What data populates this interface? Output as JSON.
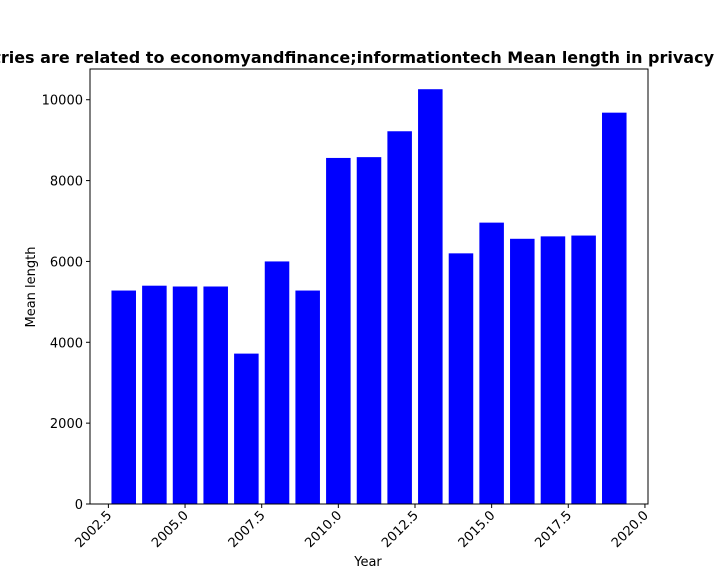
{
  "chart_data": {
    "type": "bar",
    "title": "Countries are related to economyandfinance;informationtech Mean length in privacy policies",
    "xlabel": "Year",
    "ylabel": "Mean length",
    "x": [
      2003,
      2004,
      2005,
      2006,
      2007,
      2008,
      2009,
      2010,
      2011,
      2012,
      2013,
      2014,
      2015,
      2016,
      2017,
      2018,
      2019
    ],
    "values": [
      5280,
      5400,
      5380,
      5380,
      3720,
      6000,
      5280,
      8560,
      8580,
      9220,
      10260,
      6200,
      6960,
      6560,
      6620,
      6640,
      9680
    ],
    "bar_width": 0.8,
    "xlim": [
      2001.9,
      2020.1
    ],
    "ylim": [
      0,
      10760
    ],
    "xticks": [
      "2002.5",
      "2005.0",
      "2007.5",
      "2010.0",
      "2012.5",
      "2015.0",
      "2017.5",
      "2020.0"
    ],
    "yticks": [
      "0",
      "2000",
      "4000",
      "6000",
      "8000",
      "10000"
    ],
    "grid": false,
    "color": "#0000ff"
  }
}
